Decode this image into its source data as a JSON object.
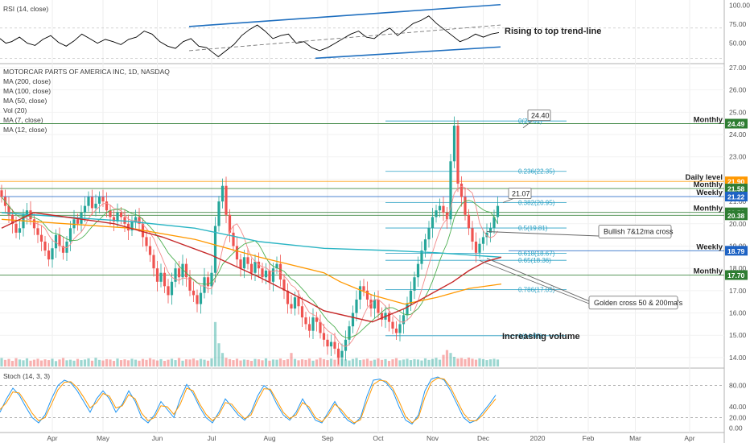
{
  "colors": {
    "up": "#26a69a",
    "down": "#ef5350",
    "ma7": "#f28b8b",
    "ma12": "#4caf50",
    "ma50": "#c62828",
    "ma100": "#ff9800",
    "ma200": "#2bb5c4",
    "trend": "#1f6fbf",
    "rsi": "#000000",
    "stochK": "#2196f3",
    "stochD": "#ff9800",
    "fib": "#29a0c4",
    "level": "#6aa84f"
  },
  "chart_data": [
    {
      "type": "line",
      "panel": "rsi",
      "title": "RSI (14, close)",
      "y_ticks": [
        "100.00",
        "75.00",
        "50.00"
      ],
      "ylim": [
        25,
        105
      ],
      "x": [
        0,
        3,
        6,
        10,
        14,
        18,
        22,
        26,
        30,
        34,
        38,
        42,
        46,
        50,
        54,
        58,
        62,
        66,
        70,
        74,
        78,
        82,
        86,
        90,
        94,
        98,
        102,
        106,
        110,
        112,
        116,
        120,
        124,
        128,
        132,
        136,
        140,
        144,
        148,
        152,
        156,
        160,
        164,
        168,
        172,
        176,
        180,
        184,
        188,
        192,
        196,
        200,
        204,
        208,
        212,
        216,
        220,
        224,
        228,
        232,
        236,
        240,
        244,
        248,
        252,
        256
      ],
      "values": [
        56,
        50,
        52,
        58,
        50,
        47,
        55,
        60,
        51,
        46,
        53,
        62,
        56,
        50,
        55,
        52,
        48,
        55,
        58,
        66,
        62,
        52,
        46,
        43,
        52,
        56,
        46,
        44,
        36,
        32,
        40,
        48,
        60,
        68,
        74,
        66,
        56,
        60,
        62,
        50,
        52,
        44,
        40,
        44,
        50,
        56,
        62,
        66,
        58,
        56,
        64,
        70,
        60,
        68,
        76,
        80,
        86,
        76,
        68,
        60,
        52,
        56,
        62,
        58,
        62,
        64
      ],
      "annotation": "Rising to top trend-line"
    },
    {
      "type": "candlestick",
      "panel": "price",
      "title": "MOTORCAR PARTS OF AMERICA INC, 1D, NASDAQ",
      "legend": [
        "MA (200, close)",
        "MA (100, close)",
        "MA (50, close)",
        "Vol (20)",
        "MA (7, close)",
        "MA (12, close)"
      ],
      "ylim": [
        13.6,
        27.0
      ],
      "y_ticks": [
        "27.00",
        "26.00",
        "25.00",
        "24.00",
        "23.00",
        "22.00",
        "21.00",
        "20.00",
        "19.00",
        "18.00",
        "17.00",
        "16.00",
        "15.00",
        "14.00"
      ],
      "x_ticks": [
        "Apr",
        "May",
        "Jun",
        "Jul",
        "Aug",
        "Sep",
        "Oct",
        "Nov",
        "Dec",
        "2020",
        "Feb",
        "Mar",
        "Apr"
      ],
      "close": [
        21.2,
        20.8,
        20.4,
        20.0,
        19.6,
        19.8,
        20.4,
        20.6,
        20.2,
        19.8,
        19.5,
        19.2,
        18.8,
        18.4,
        18.9,
        19.5,
        19.0,
        18.7,
        19.2,
        19.8,
        20.2,
        20.0,
        20.5,
        20.8,
        21.2,
        20.7,
        20.9,
        21.2,
        21.0,
        20.6,
        20.3,
        20.1,
        20.5,
        20.3,
        20.0,
        19.7,
        20.1,
        20.3,
        20.0,
        19.4,
        19.0,
        18.6,
        18.0,
        17.4,
        17.8,
        17.2,
        16.8,
        17.4,
        18.0,
        17.6,
        18.2,
        17.6,
        17.0,
        16.8,
        16.4,
        16.9,
        17.6,
        17.2,
        17.8,
        19.9,
        21.0,
        21.7,
        20.4,
        19.6,
        19.0,
        18.4,
        18.0,
        18.5,
        18.2,
        17.8,
        18.3,
        18.0,
        17.6,
        17.9,
        17.4,
        18.0,
        18.2,
        17.5,
        17.0,
        16.4,
        16.2,
        16.7,
        16.3,
        15.8,
        15.5,
        15.2,
        15.8,
        15.6,
        15.1,
        14.8,
        14.5,
        14.7,
        14.4,
        14.0,
        14.3,
        14.8,
        15.4,
        16.0,
        16.6,
        17.2,
        17.0,
        16.6,
        16.2,
        16.6,
        16.0,
        15.7,
        16.0,
        15.6,
        15.3,
        15.1,
        15.5,
        15.9,
        16.4,
        17.0,
        17.6,
        18.2,
        18.8,
        19.3,
        19.8,
        20.3,
        20.6,
        20.8,
        20.5,
        20.2,
        22.8,
        24.4,
        21.8,
        21.2,
        20.4,
        19.8,
        19.2,
        18.7,
        19.1,
        19.4,
        19.6,
        19.8,
        20.3,
        20.8
      ],
      "volume": [
        0.44,
        0.34,
        0.39,
        0.29,
        0.43,
        0.36,
        0.32,
        0.42,
        0.3,
        0.35,
        0.4,
        0.31,
        0.37,
        0.33,
        0.4,
        0.28,
        0.36,
        0.44,
        0.32,
        0.35,
        0.3,
        0.39,
        0.33,
        0.36,
        0.42,
        0.3,
        0.45,
        0.34,
        0.31,
        0.38,
        0.36,
        0.29,
        0.41,
        0.33,
        0.37,
        0.32,
        0.4,
        0.35,
        0.3,
        0.39,
        0.34,
        0.43,
        0.36,
        0.31,
        0.38,
        0.29,
        0.35,
        0.4,
        0.33,
        0.44,
        0.3,
        0.37,
        0.36,
        0.41,
        0.32,
        0.39,
        0.35,
        0.3,
        0.42,
        2.3,
        1.2,
        0.7,
        0.45,
        0.38,
        0.33,
        0.4,
        0.31,
        0.36,
        0.34,
        0.29,
        0.39,
        0.37,
        0.32,
        0.42,
        0.3,
        0.36,
        0.35,
        0.41,
        0.33,
        0.38,
        0.7,
        0.39,
        0.32,
        0.37,
        0.34,
        0.41,
        0.3,
        0.36,
        0.45,
        0.38,
        0.33,
        0.4,
        0.35,
        0.5,
        0.42,
        0.37,
        0.31,
        0.39,
        0.44,
        0.33,
        0.36,
        0.4,
        0.3,
        0.35,
        0.42,
        0.34,
        0.38,
        0.29,
        0.37,
        0.43,
        0.32,
        0.36,
        0.4,
        0.33,
        0.38,
        0.36,
        0.31,
        0.42,
        0.34,
        0.39,
        0.45,
        0.35,
        0.6,
        0.85,
        0.7,
        0.5,
        0.41,
        0.44,
        0.38,
        0.46,
        0.4,
        0.35,
        0.42,
        0.38,
        0.33,
        0.37,
        0.4,
        0.36
      ],
      "ma200": {
        "x": [
          0,
          40,
          80,
          120,
          160,
          200,
          240,
          270,
          290,
          300,
          310
        ],
        "values": [
          20.5,
          20.3,
          20.1,
          19.8,
          19.2,
          18.9,
          18.8,
          18.7,
          18.6,
          18.55,
          18.5
        ]
      },
      "ma100": {
        "x": [
          0,
          40,
          80,
          120,
          160,
          200,
          210,
          230,
          250,
          270,
          290,
          310
        ],
        "values": [
          20.2,
          20.0,
          19.8,
          19.3,
          18.5,
          17.8,
          17.4,
          16.8,
          16.4,
          16.7,
          17.1,
          17.3
        ]
      },
      "ma50": {
        "x": [
          0,
          20,
          40,
          70,
          100,
          130,
          160,
          190,
          200,
          230,
          250,
          270,
          280,
          290,
          300,
          310
        ],
        "values": [
          19.8,
          20.5,
          20.3,
          20.0,
          19.4,
          18.6,
          17.6,
          16.5,
          16.1,
          15.6,
          16.2,
          17.0,
          17.4,
          17.9,
          18.3,
          18.5
        ]
      },
      "fib_levels": [
        {
          "label": "0(24.61)",
          "value": 24.61
        },
        {
          "label": "0.236(22.35)",
          "value": 22.35
        },
        {
          "label": "0.382(20.95)",
          "value": 20.95
        },
        {
          "label": "0.5(19.81)",
          "value": 19.81
        },
        {
          "label": "0.618(18.67)",
          "value": 18.67
        },
        {
          "label": "0.65(18.36)",
          "value": 18.36
        },
        {
          "label": "0.786(17.05)",
          "value": 17.05
        },
        {
          "label": "1(14.98)",
          "value": 14.98
        }
      ],
      "levels": [
        {
          "label": "Monthly",
          "value": 24.49,
          "tag": "24.49",
          "tag_color": "#2e7d32"
        },
        {
          "label": "Daily level",
          "value": 21.9,
          "tag": "21.90",
          "tag_color": "#ff9800"
        },
        {
          "label": "Monthly",
          "value": 21.58,
          "tag": "21.58",
          "tag_color": "#2e7d32"
        },
        {
          "label": "Weekly",
          "value": 21.22,
          "tag": "21.22",
          "tag_color": "#1e63c4"
        },
        {
          "label": "Monthly",
          "value": 20.51,
          "tag": "20.51",
          "tag_color": "#2e7d32"
        },
        {
          "label": "",
          "value": 20.38,
          "tag": "20.38",
          "tag_color": "#2e7d32"
        },
        {
          "label": "Weekly",
          "value": 18.79,
          "tag": "18.79",
          "tag_color": "#1e63c4"
        },
        {
          "label": "Monthly",
          "value": 17.7,
          "tag": "17.70",
          "tag_color": "#2e7d32"
        }
      ],
      "callouts": [
        {
          "text": "24.40",
          "value": 24.4
        },
        {
          "text": "21.07",
          "value": 21.07
        },
        {
          "text": "Bullish 7&12ma cross",
          "value": 19.6
        },
        {
          "text": "Golden cross 50 & 200ma's",
          "value": 18.45
        }
      ],
      "annotation": "Increasing volume"
    },
    {
      "type": "line",
      "panel": "stoch",
      "title": "Stoch (14, 3, 3)",
      "ylim": [
        -5,
        105
      ],
      "y_ticks": [
        "80.00",
        "40.00",
        "20.00",
        "0.00"
      ],
      "x": [
        0,
        8,
        16,
        24,
        32,
        40,
        48,
        56,
        64,
        72,
        80,
        88,
        96,
        104,
        112,
        120,
        128,
        136,
        144,
        152,
        160,
        168,
        176,
        184,
        192,
        200,
        208,
        216,
        224,
        232,
        240,
        248,
        256,
        264,
        272,
        280,
        288,
        296,
        304,
        312,
        320,
        328,
        336,
        344,
        352,
        360,
        368,
        376,
        384,
        392,
        400,
        408,
        416,
        424,
        432,
        440,
        448,
        456,
        464,
        472,
        480,
        488,
        496,
        504,
        512,
        520,
        528,
        536,
        544,
        552,
        560,
        568,
        576,
        584,
        592,
        600,
        608,
        616
      ],
      "k": [
        30,
        55,
        75,
        62,
        40,
        20,
        10,
        25,
        55,
        80,
        90,
        85,
        70,
        50,
        30,
        55,
        70,
        55,
        30,
        45,
        70,
        50,
        20,
        10,
        25,
        50,
        35,
        20,
        55,
        82,
        65,
        40,
        20,
        10,
        30,
        55,
        40,
        25,
        15,
        30,
        60,
        80,
        70,
        45,
        25,
        15,
        30,
        55,
        35,
        15,
        10,
        30,
        50,
        30,
        15,
        8,
        20,
        60,
        90,
        92,
        85,
        70,
        40,
        15,
        8,
        25,
        70,
        92,
        96,
        90,
        70,
        45,
        20,
        10,
        15,
        30,
        45,
        62
      ],
      "d": [
        35,
        48,
        68,
        66,
        48,
        28,
        14,
        20,
        45,
        72,
        86,
        87,
        76,
        58,
        38,
        48,
        65,
        60,
        38,
        42,
        63,
        55,
        28,
        14,
        20,
        42,
        40,
        26,
        45,
        75,
        70,
        46,
        26,
        14,
        25,
        48,
        45,
        30,
        18,
        25,
        52,
        74,
        73,
        52,
        30,
        18,
        25,
        48,
        40,
        20,
        12,
        25,
        45,
        35,
        20,
        10,
        16,
        50,
        82,
        90,
        88,
        75,
        50,
        22,
        10,
        20,
        58,
        86,
        94,
        92,
        76,
        52,
        28,
        14,
        14,
        25,
        40,
        55
      ]
    }
  ]
}
